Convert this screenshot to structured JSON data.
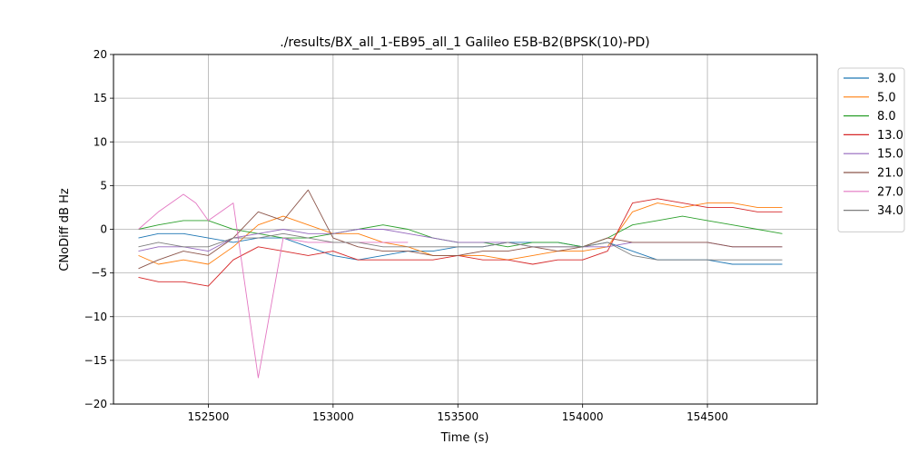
{
  "chart_data": {
    "type": "line",
    "title": "./results/BX_all_1-EB95_all_1 Galileo E5B-B2(BPSK(10)-PD)",
    "xlabel": "Time (s)",
    "ylabel": "CNoDiff dB Hz",
    "xlim": [
      152120,
      154940
    ],
    "ylim": [
      -20,
      20
    ],
    "xticks": [
      152500,
      153000,
      153500,
      154000,
      154500
    ],
    "xtick_labels": [
      "152500",
      "153000",
      "153500",
      "154000",
      "154500"
    ],
    "yticks": [
      -20,
      -15,
      -10,
      -5,
      0,
      5,
      10,
      15,
      20
    ],
    "ytick_labels": [
      "−20",
      "−15",
      "−10",
      "−5",
      "0",
      "5",
      "10",
      "15",
      "20"
    ],
    "grid": true,
    "legend_position": "outside-right",
    "series": [
      {
        "name": "3.0",
        "color": "#1f77b4",
        "x": [
          152220,
          152300,
          152400,
          152500,
          152600,
          152700,
          152800,
          152900,
          153000,
          153100,
          153200,
          153300,
          153400,
          153500,
          153600,
          153700,
          153800,
          153900,
          154000,
          154100,
          154200,
          154300,
          154400,
          154500,
          154600,
          154700,
          154800
        ],
        "y": [
          -1.0,
          -0.5,
          -0.5,
          -1.0,
          -1.5,
          -1.0,
          -1.0,
          -2.0,
          -3.0,
          -3.5,
          -3.0,
          -2.5,
          -2.5,
          -2.0,
          -2.0,
          -1.5,
          -1.5,
          -1.5,
          -2.0,
          -1.5,
          -2.5,
          -3.5,
          -3.5,
          -3.5,
          -4.0,
          -4.0,
          -4.0
        ]
      },
      {
        "name": "5.0",
        "color": "#ff7f0e",
        "x": [
          152220,
          152300,
          152400,
          152500,
          152600,
          152700,
          152800,
          152900,
          153000,
          153100,
          153200,
          153300,
          153400,
          153500,
          153600,
          153700,
          153800,
          153900,
          154000,
          154100,
          154200,
          154300,
          154400,
          154500,
          154600,
          154700,
          154800
        ],
        "y": [
          -3.0,
          -4.0,
          -3.5,
          -4.0,
          -2.0,
          0.5,
          1.5,
          0.5,
          -0.5,
          -0.5,
          -1.5,
          -2.0,
          -3.0,
          -3.0,
          -3.0,
          -3.5,
          -3.0,
          -2.5,
          -2.5,
          -2.0,
          2.0,
          3.0,
          2.5,
          3.0,
          3.0,
          2.5,
          2.5
        ]
      },
      {
        "name": "8.0",
        "color": "#2ca02c",
        "x": [
          152220,
          152300,
          152400,
          152500,
          152600,
          152700,
          152800,
          152900,
          153000,
          153100,
          153200,
          153300,
          153400,
          153500,
          153600,
          153700,
          153800,
          153900,
          154000,
          154100,
          154200,
          154300,
          154400,
          154500,
          154600,
          154700,
          154800
        ],
        "y": [
          0.0,
          0.5,
          1.0,
          1.0,
          0.0,
          -0.5,
          -1.0,
          -1.0,
          -0.5,
          0.0,
          0.5,
          0.0,
          -1.0,
          -1.5,
          -1.5,
          -2.0,
          -1.5,
          -1.5,
          -2.0,
          -1.0,
          0.5,
          1.0,
          1.5,
          1.0,
          0.5,
          0.0,
          -0.5
        ]
      },
      {
        "name": "13.0",
        "color": "#d62728",
        "x": [
          152220,
          152300,
          152400,
          152500,
          152600,
          152700,
          152800,
          152900,
          153000,
          153100,
          153200,
          153300,
          153400,
          153500,
          153600,
          153700,
          153800,
          153900,
          154000,
          154100,
          154200,
          154300,
          154400,
          154500,
          154600,
          154700,
          154800
        ],
        "y": [
          -5.5,
          -6.0,
          -6.0,
          -6.5,
          -3.5,
          -2.0,
          -2.5,
          -3.0,
          -2.5,
          -3.5,
          -3.5,
          -3.5,
          -3.5,
          -3.0,
          -3.5,
          -3.5,
          -4.0,
          -3.5,
          -3.5,
          -2.5,
          3.0,
          3.5,
          3.0,
          2.5,
          2.5,
          2.0,
          2.0
        ]
      },
      {
        "name": "15.0",
        "color": "#9467bd",
        "x": [
          152220,
          152300,
          152400,
          152500,
          152600,
          152700,
          152800,
          152900,
          153000,
          153100,
          153200,
          153300,
          153400,
          153500,
          153600,
          153700,
          153800,
          153900,
          154000,
          154100,
          154200,
          154300,
          154400,
          154500,
          154600,
          154700,
          154800
        ],
        "y": [
          -2.5,
          -2.0,
          -2.0,
          -2.5,
          -1.0,
          -0.5,
          0.0,
          -0.5,
          -0.5,
          0.0,
          0.0,
          -0.5,
          -1.0,
          -1.5,
          -1.5,
          -1.5,
          -2.0,
          -2.0,
          -2.0,
          -2.0,
          -1.5,
          -1.5,
          -1.5,
          -1.5,
          -2.0,
          -2.0,
          -2.0
        ]
      },
      {
        "name": "21.0",
        "color": "#8c564b",
        "x": [
          152220,
          152300,
          152400,
          152500,
          152600,
          152700,
          152800,
          152900,
          153000,
          153100,
          153200,
          153300,
          153400,
          153500,
          153600,
          153700,
          153800,
          153900,
          154000,
          154100,
          154200,
          154300,
          154400,
          154500,
          154600,
          154700,
          154800
        ],
        "y": [
          -4.5,
          -3.5,
          -2.5,
          -3.0,
          -1.0,
          2.0,
          1.0,
          4.5,
          -1.0,
          -2.0,
          -2.5,
          -2.5,
          -3.0,
          -3.0,
          -2.5,
          -2.5,
          -2.0,
          -2.5,
          -2.0,
          -1.0,
          -1.5,
          -1.5,
          -1.5,
          -1.5,
          -2.0,
          -2.0,
          -2.0
        ]
      },
      {
        "name": "27.0",
        "color": "#e377c2",
        "x": [
          152220,
          152300,
          152400,
          152450,
          152500,
          152600,
          152700,
          152800,
          152900,
          153000,
          153100,
          153200,
          153300
        ],
        "y": [
          0.0,
          2.0,
          4.0,
          3.0,
          1.0,
          3.0,
          -17.0,
          -1.0,
          -1.5,
          -1.5,
          -1.5,
          -1.5,
          -1.5
        ]
      },
      {
        "name": "34.0",
        "color": "#7f7f7f",
        "x": [
          152220,
          152300,
          152400,
          152500,
          152600,
          152700,
          152800,
          152900,
          153000,
          153100,
          153200,
          153300,
          153400,
          153500,
          153600,
          153700,
          153800,
          153900,
          154000,
          154100,
          154200,
          154300,
          154400,
          154500,
          154600,
          154700,
          154800
        ],
        "y": [
          -2.0,
          -1.5,
          -2.0,
          -2.0,
          -1.0,
          -1.0,
          -0.5,
          -1.0,
          -1.5,
          -1.5,
          -2.0,
          -2.0,
          -2.0,
          -2.0,
          -2.0,
          -1.5,
          -2.0,
          -2.0,
          -2.0,
          -1.5,
          -3.0,
          -3.5,
          -3.5,
          -3.5,
          -3.5,
          -3.5,
          -3.5
        ]
      }
    ]
  }
}
